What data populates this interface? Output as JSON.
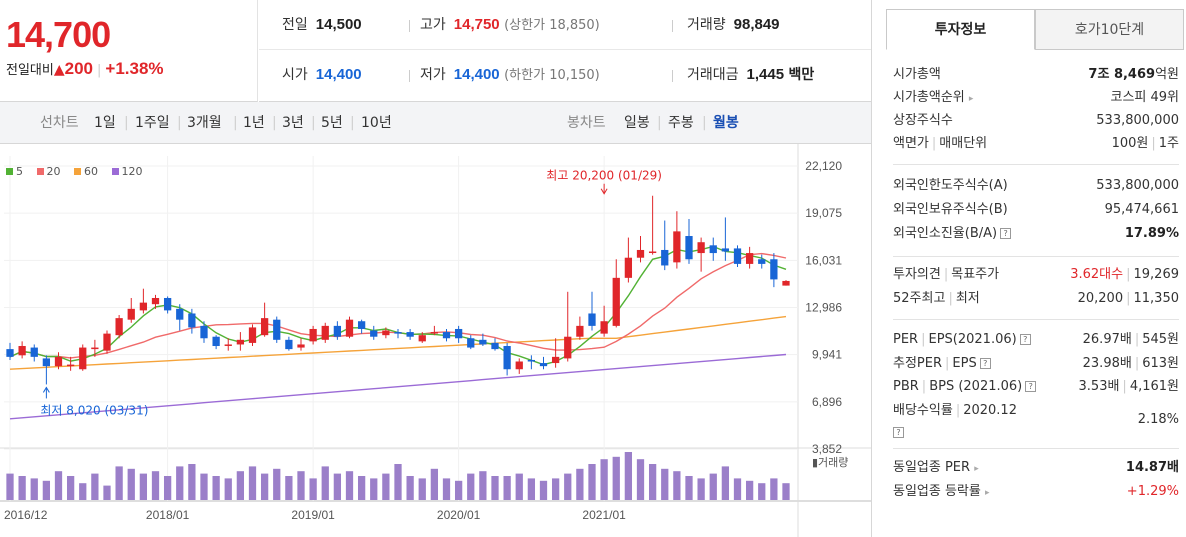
{
  "price": {
    "current": "14,700",
    "change_label": "전일대비",
    "change_arrow": "▲",
    "change_value": "200",
    "change_rate": "+1.38%"
  },
  "stats": {
    "prev_close": {
      "label": "전일",
      "value": "14,500"
    },
    "high": {
      "label": "고가",
      "value": "14,750",
      "limit": "(상한가 18,850)"
    },
    "volume": {
      "label": "거래량",
      "value": "98,849"
    },
    "open": {
      "label": "시가",
      "value": "14,400"
    },
    "low": {
      "label": "저가",
      "value": "14,400",
      "limit": "(하한가 10,150)"
    },
    "amount": {
      "label": "거래대금",
      "value": "1,445",
      "unit": "백만"
    }
  },
  "period_tabs": {
    "line_label": "선차트",
    "line_items": [
      "1일",
      "1주일",
      "3개월",
      "1년",
      "3년",
      "5년",
      "10년"
    ],
    "candle_label": "봉차트",
    "candle_items": [
      "일봉",
      "주봉",
      "월봉"
    ],
    "active": "월봉"
  },
  "colors": {
    "up": "#e0262a",
    "down": "#1865d6",
    "ma5": "#52b234",
    "ma20": "#f06a6a",
    "ma60": "#f5a33a",
    "ma120": "#9b6bd6",
    "volume": "#9b7fc9",
    "accent": "#1a4fb3"
  },
  "chart_data": {
    "type": "candlestick",
    "legend": [
      {
        "name": "5",
        "color": "#52b234"
      },
      {
        "name": "20",
        "color": "#f06a6a"
      },
      {
        "name": "60",
        "color": "#f5a33a"
      },
      {
        "name": "120",
        "color": "#9b6bd6"
      }
    ],
    "y_ticks": [
      "22,120",
      "19,075",
      "16,031",
      "12,986",
      "9,941",
      "6,896",
      "3,852"
    ],
    "y_tick_values": [
      22120,
      19075,
      16031,
      12986,
      9941,
      6896,
      3852
    ],
    "ylim": [
      3852,
      22120
    ],
    "x_ticks": [
      {
        "label": "2016/12",
        "index": 0
      },
      {
        "label": "2018/01",
        "index": 13
      },
      {
        "label": "2019/01",
        "index": 25
      },
      {
        "label": "2020/01",
        "index": 37
      },
      {
        "label": "2021/01",
        "index": 49
      }
    ],
    "volume_label": "▮거래량",
    "max_label": {
      "text": "최고 20,200 (01/29)",
      "index": 49
    },
    "min_label": {
      "text": "최저 8,020 (03/31)",
      "index": 3
    },
    "candles": [
      {
        "o": 10300,
        "c": 9800,
        "h": 10700,
        "l": 9600
      },
      {
        "o": 9900,
        "c": 10500,
        "h": 10800,
        "l": 9700
      },
      {
        "o": 10400,
        "c": 9800,
        "h": 10600,
        "l": 9500
      },
      {
        "o": 9700,
        "c": 9200,
        "h": 9900,
        "l": 8020
      },
      {
        "o": 9200,
        "c": 9800,
        "h": 10100,
        "l": 9000
      },
      {
        "o": 9300,
        "c": 9300,
        "h": 9800,
        "l": 8900
      },
      {
        "o": 9000,
        "c": 10400,
        "h": 10600,
        "l": 8900
      },
      {
        "o": 10300,
        "c": 10400,
        "h": 10900,
        "l": 9800
      },
      {
        "o": 10200,
        "c": 11300,
        "h": 11500,
        "l": 10000
      },
      {
        "o": 11200,
        "c": 12300,
        "h": 12500,
        "l": 11000
      },
      {
        "o": 12200,
        "c": 12900,
        "h": 13600,
        "l": 12000
      },
      {
        "o": 12800,
        "c": 13300,
        "h": 14200,
        "l": 12600
      },
      {
        "o": 13200,
        "c": 13600,
        "h": 13800,
        "l": 12900
      },
      {
        "o": 13600,
        "c": 12800,
        "h": 13700,
        "l": 12600
      },
      {
        "o": 12900,
        "c": 12200,
        "h": 13200,
        "l": 11500
      },
      {
        "o": 12600,
        "c": 11700,
        "h": 12900,
        "l": 11300
      },
      {
        "o": 11800,
        "c": 11000,
        "h": 12100,
        "l": 10700
      },
      {
        "o": 11100,
        "c": 10500,
        "h": 11200,
        "l": 10300
      },
      {
        "o": 10600,
        "c": 10600,
        "h": 11000,
        "l": 10200
      },
      {
        "o": 10600,
        "c": 10900,
        "h": 11400,
        "l": 10200
      },
      {
        "o": 10700,
        "c": 11700,
        "h": 11900,
        "l": 10500
      },
      {
        "o": 11200,
        "c": 12300,
        "h": 13300,
        "l": 11100
      },
      {
        "o": 12200,
        "c": 10900,
        "h": 12400,
        "l": 10700
      },
      {
        "o": 10900,
        "c": 10300,
        "h": 11100,
        "l": 10200
      },
      {
        "o": 10400,
        "c": 10600,
        "h": 11000,
        "l": 10200
      },
      {
        "o": 10800,
        "c": 11600,
        "h": 11800,
        "l": 10600
      },
      {
        "o": 10900,
        "c": 11800,
        "h": 12000,
        "l": 10700
      },
      {
        "o": 11800,
        "c": 11100,
        "h": 12100,
        "l": 10900
      },
      {
        "o": 11100,
        "c": 12200,
        "h": 12400,
        "l": 11000
      },
      {
        "o": 12100,
        "c": 11600,
        "h": 12200,
        "l": 11300
      },
      {
        "o": 11500,
        "c": 11100,
        "h": 11800,
        "l": 10900
      },
      {
        "o": 11200,
        "c": 11500,
        "h": 11700,
        "l": 11000
      },
      {
        "o": 11400,
        "c": 11300,
        "h": 11600,
        "l": 11000
      },
      {
        "o": 11400,
        "c": 11100,
        "h": 11600,
        "l": 10900
      },
      {
        "o": 10800,
        "c": 11200,
        "h": 11400,
        "l": 10700
      },
      {
        "o": 11400,
        "c": 11400,
        "h": 11800,
        "l": 11200
      },
      {
        "o": 11400,
        "c": 11000,
        "h": 11600,
        "l": 10800
      },
      {
        "o": 11600,
        "c": 11000,
        "h": 11800,
        "l": 10700
      },
      {
        "o": 11000,
        "c": 10400,
        "h": 11200,
        "l": 10300
      },
      {
        "o": 10900,
        "c": 10600,
        "h": 11300,
        "l": 10500
      },
      {
        "o": 10700,
        "c": 10300,
        "h": 11000,
        "l": 10200
      },
      {
        "o": 10500,
        "c": 9000,
        "h": 10700,
        "l": 8600
      },
      {
        "o": 9000,
        "c": 9500,
        "h": 9700,
        "l": 8700
      },
      {
        "o": 9600,
        "c": 9500,
        "h": 9900,
        "l": 9000
      },
      {
        "o": 9400,
        "c": 9200,
        "h": 9800,
        "l": 9000
      },
      {
        "o": 9400,
        "c": 9800,
        "h": 11000,
        "l": 9100
      },
      {
        "o": 9700,
        "c": 11100,
        "h": 14000,
        "l": 9500
      },
      {
        "o": 11100,
        "c": 11800,
        "h": 12400,
        "l": 10900
      },
      {
        "o": 12600,
        "c": 11800,
        "h": 14000,
        "l": 11500
      },
      {
        "o": 11300,
        "c": 12100,
        "h": 13100,
        "l": 11100
      },
      {
        "o": 11800,
        "c": 14900,
        "h": 16100,
        "l": 11700
      },
      {
        "o": 14900,
        "c": 16200,
        "h": 17500,
        "l": 14600
      },
      {
        "o": 16200,
        "c": 16700,
        "h": 17600,
        "l": 15900
      },
      {
        "o": 16600,
        "c": 16600,
        "h": 20200,
        "l": 16400
      },
      {
        "o": 16700,
        "c": 15700,
        "h": 18600,
        "l": 15400
      },
      {
        "o": 15900,
        "c": 17900,
        "h": 19200,
        "l": 15500
      },
      {
        "o": 17600,
        "c": 16100,
        "h": 18700,
        "l": 15800
      },
      {
        "o": 16500,
        "c": 17200,
        "h": 17500,
        "l": 15300
      },
      {
        "o": 17000,
        "c": 16500,
        "h": 17500,
        "l": 16000
      },
      {
        "o": 16800,
        "c": 16600,
        "h": 18800,
        "l": 16000
      },
      {
        "o": 16800,
        "c": 15800,
        "h": 17000,
        "l": 15600
      },
      {
        "o": 15800,
        "c": 16500,
        "h": 16900,
        "l": 15500
      },
      {
        "o": 16100,
        "c": 15800,
        "h": 16400,
        "l": 15500
      },
      {
        "o": 16100,
        "c": 14800,
        "h": 16500,
        "l": 14300
      },
      {
        "o": 14400,
        "c": 14700,
        "h": 14750,
        "l": 14400
      }
    ],
    "volumes": [
      22,
      20,
      18,
      16,
      24,
      20,
      14,
      22,
      12,
      28,
      26,
      22,
      24,
      20,
      28,
      30,
      22,
      20,
      18,
      24,
      28,
      22,
      26,
      20,
      24,
      18,
      28,
      22,
      24,
      20,
      18,
      22,
      30,
      20,
      18,
      26,
      18,
      16,
      22,
      24,
      20,
      20,
      22,
      18,
      16,
      18,
      22,
      26,
      30,
      34,
      36,
      40,
      34,
      30,
      26,
      24,
      20,
      18,
      22,
      28,
      18,
      16,
      14,
      18,
      14
    ]
  },
  "info_panel": {
    "tabs": [
      "투자정보",
      "호가10단계"
    ],
    "market_cap": {
      "label": "시가총액",
      "value_bold": "7조 8,469",
      "unit": "억원"
    },
    "market_cap_rank": {
      "label": "시가총액순위",
      "value": "코스피 49위"
    },
    "listed_shares": {
      "label": "상장주식수",
      "value": "533,800,000"
    },
    "par_value": {
      "label": "액면가",
      "label2": "매매단위",
      "value": "100원",
      "value2": "1주"
    },
    "foreign_limit": {
      "label": "외국인한도주식수(A)",
      "value": "533,800,000"
    },
    "foreign_held": {
      "label": "외국인보유주식수(B)",
      "value": "95,474,661"
    },
    "foreign_ratio": {
      "label": "외국인소진율(B/A)",
      "value": "17.89%"
    },
    "opinion": {
      "label": "투자의견",
      "label2": "목표주가",
      "value": "3.62대수",
      "value2": "19,269"
    },
    "week52": {
      "label": "52주최고",
      "label2": "최저",
      "value": "20,200",
      "value2": "11,350"
    },
    "per": {
      "label": "PER",
      "label2": "EPS(2021.06)",
      "value": "26.97배",
      "value2": "545원"
    },
    "est_per": {
      "label": "추정PER",
      "label2": "EPS",
      "value": "23.98배",
      "value2": "613원"
    },
    "pbr": {
      "label": "PBR",
      "label2": "BPS (2021.06)",
      "value": "3.53배",
      "value2": "4,161원"
    },
    "dividend": {
      "label": "배당수익률",
      "label2": "2020.12",
      "value": "2.18%"
    },
    "sector_per": {
      "label": "동일업종 PER",
      "value": "14.87배"
    },
    "sector_change": {
      "label": "동일업종 등락률",
      "value": "+1.29%"
    }
  }
}
